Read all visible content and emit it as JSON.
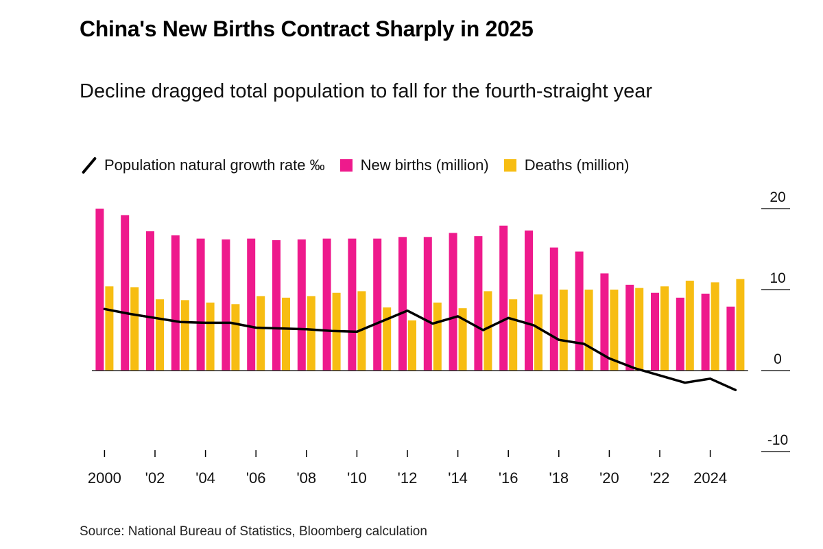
{
  "title": "China's New Births Contract Sharply in 2025",
  "subtitle": "Decline dragged total population to fall for the fourth-straight year",
  "source": "Source: National Bureau of Statistics, Bloomberg calculation",
  "legend": {
    "growth": "Population natural growth rate ‰",
    "births": "New births (million)",
    "deaths": "Deaths (million)"
  },
  "colors": {
    "births": "#ee1a8c",
    "deaths": "#f7bd12",
    "growth": "#000000",
    "axis": "#000000"
  },
  "chart_data": {
    "type": "bar",
    "x": [
      2000,
      2001,
      2002,
      2003,
      2004,
      2005,
      2006,
      2007,
      2008,
      2009,
      2010,
      2011,
      2012,
      2013,
      2014,
      2015,
      2016,
      2017,
      2018,
      2019,
      2020,
      2021,
      2022,
      2023,
      2024,
      2025
    ],
    "x_tick_labels": [
      {
        "x": 2000,
        "label": "2000"
      },
      {
        "x": 2002,
        "label": "'02"
      },
      {
        "x": 2004,
        "label": "'04"
      },
      {
        "x": 2006,
        "label": "'06"
      },
      {
        "x": 2008,
        "label": "'08"
      },
      {
        "x": 2010,
        "label": "'10"
      },
      {
        "x": 2012,
        "label": "'12"
      },
      {
        "x": 2014,
        "label": "'14"
      },
      {
        "x": 2016,
        "label": "'16"
      },
      {
        "x": 2018,
        "label": "'18"
      },
      {
        "x": 2020,
        "label": "'20"
      },
      {
        "x": 2022,
        "label": "'22"
      },
      {
        "x": 2024,
        "label": "2024"
      }
    ],
    "y_ticks": [
      -10,
      0,
      10,
      20
    ],
    "ylim": [
      -10,
      20
    ],
    "series": [
      {
        "name": "New births (million)",
        "type": "bar",
        "values": [
          20.0,
          19.2,
          17.2,
          16.7,
          16.3,
          16.2,
          16.3,
          16.1,
          16.2,
          16.3,
          16.3,
          16.3,
          16.5,
          16.5,
          17.0,
          16.6,
          17.9,
          17.3,
          15.2,
          14.7,
          12.0,
          10.6,
          9.6,
          9.0,
          9.5,
          7.9
        ]
      },
      {
        "name": "Deaths (million)",
        "type": "bar",
        "values": [
          10.4,
          10.3,
          8.8,
          8.7,
          8.4,
          8.2,
          9.2,
          9.0,
          9.2,
          9.6,
          9.8,
          7.8,
          6.2,
          8.4,
          7.7,
          9.8,
          8.8,
          9.4,
          10.0,
          10.0,
          10.0,
          10.2,
          10.4,
          11.1,
          10.9,
          11.3
        ]
      },
      {
        "name": "Population natural growth rate ‰",
        "type": "line",
        "values": [
          7.6,
          7.0,
          6.5,
          6.0,
          5.9,
          5.9,
          5.3,
          5.2,
          5.1,
          4.9,
          4.8,
          6.1,
          7.4,
          5.8,
          6.7,
          5.0,
          6.5,
          5.6,
          3.8,
          3.3,
          1.5,
          0.3,
          -0.6,
          -1.5,
          -1.0,
          -2.4
        ]
      }
    ],
    "grid": false,
    "legend_position": "top"
  }
}
